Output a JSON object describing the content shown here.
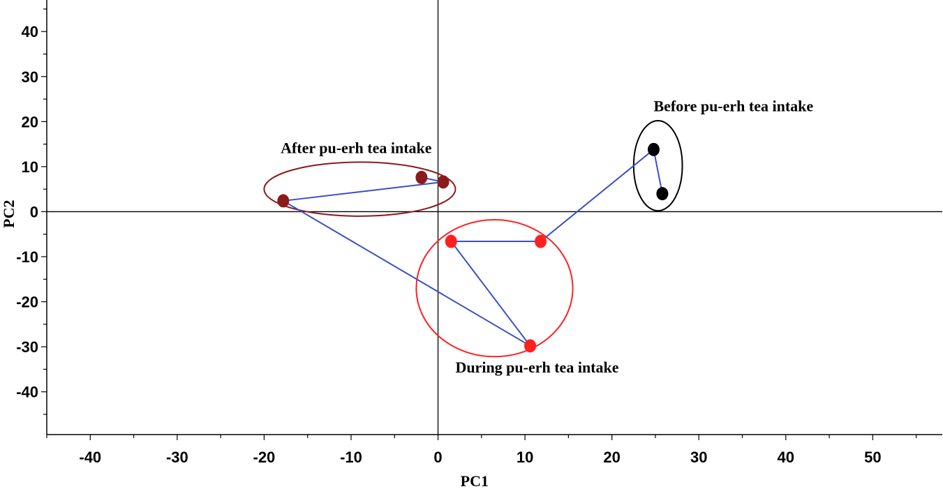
{
  "chart_data": {
    "type": "scatter",
    "xlabel": "PC1",
    "ylabel": "PC2",
    "xlim": [
      -45,
      58
    ],
    "ylim": [
      -49.5,
      47
    ],
    "x_ticks": [
      -40,
      -30,
      -20,
      -10,
      0,
      10,
      20,
      30,
      40,
      50
    ],
    "y_ticks": [
      40,
      30,
      20,
      10,
      0,
      -10,
      -20,
      -30,
      -40
    ],
    "x_tick_labels": [
      "-40",
      "-30",
      "-20",
      "-10",
      "0",
      "10",
      "20",
      "30",
      "40",
      "50"
    ],
    "y_tick_labels": [
      "40",
      "30",
      "20",
      "10",
      "0",
      "-10",
      "-20",
      "-30",
      "-40"
    ],
    "grid": false,
    "groups": [
      {
        "label": "Before pu-erh tea intake",
        "color": "#000000",
        "ellipse_color": "#000000",
        "points": [
          {
            "x": 24.8,
            "y": 13.8
          },
          {
            "x": 25.8,
            "y": 4.0
          }
        ],
        "ellipse": {
          "cx": 25.3,
          "cy": 10.2,
          "rx": 2.8,
          "ry": 10.0
        }
      },
      {
        "label": "During pu-erh tea intake",
        "color": "#ff2020",
        "ellipse_color": "#ff2020",
        "points": [
          {
            "x": 1.5,
            "y": -6.6
          },
          {
            "x": 11.8,
            "y": -6.6
          },
          {
            "x": 10.6,
            "y": -29.8
          }
        ],
        "ellipse": {
          "cx": 6.5,
          "cy": -17.0,
          "rx": 9.0,
          "ry": 15.2
        }
      },
      {
        "label": "After pu-erh tea intake",
        "color": "#8b1a1a",
        "ellipse_color": "#8b1a1a",
        "points": [
          {
            "x": -17.8,
            "y": 2.4
          },
          {
            "x": -1.9,
            "y": 7.6
          },
          {
            "x": 0.6,
            "y": 6.6
          }
        ],
        "ellipse": {
          "cx": -9.0,
          "cy": 5.0,
          "rx": 11.0,
          "ry": 6.0
        }
      }
    ],
    "connector_color": "#3a4fc4",
    "connections": [
      [
        {
          "x": 24.8,
          "y": 13.8
        },
        {
          "x": 25.8,
          "y": 4.0
        }
      ],
      [
        {
          "x": 24.8,
          "y": 13.8
        },
        {
          "x": 11.8,
          "y": -6.6
        }
      ],
      [
        {
          "x": 11.8,
          "y": -6.6
        },
        {
          "x": 1.5,
          "y": -6.6
        }
      ],
      [
        {
          "x": 1.5,
          "y": -6.6
        },
        {
          "x": 10.6,
          "y": -29.8
        }
      ],
      [
        {
          "x": 10.6,
          "y": -29.8
        },
        {
          "x": -17.8,
          "y": 2.4
        }
      ],
      [
        {
          "x": -17.8,
          "y": 2.4
        },
        {
          "x": 0.6,
          "y": 6.6
        }
      ],
      [
        {
          "x": -1.9,
          "y": 7.6
        },
        {
          "x": 0.6,
          "y": 6.6
        }
      ]
    ],
    "annotations": [
      {
        "text": "Before pu-erh tea intake",
        "x": 24.8,
        "y": 22.3,
        "anchor": "start"
      },
      {
        "text": "After pu-erh tea intake",
        "x": -18.1,
        "y": 13.0,
        "anchor": "start"
      },
      {
        "text": "During pu-erh tea intake",
        "x": 2.0,
        "y": -35.7,
        "anchor": "start"
      }
    ]
  }
}
